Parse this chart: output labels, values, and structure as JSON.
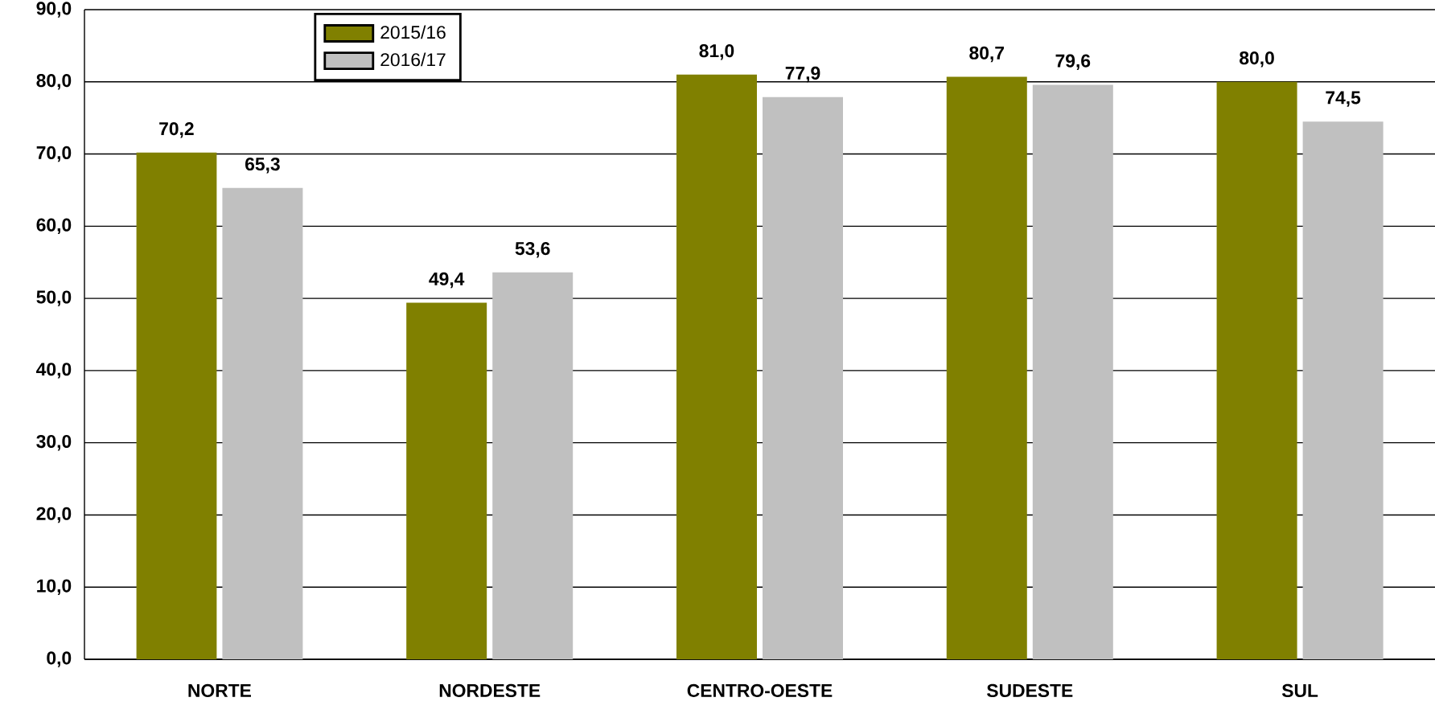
{
  "chart_data": {
    "type": "bar",
    "categories": [
      "NORTE",
      "NORDESTE",
      "CENTRO-OESTE",
      "SUDESTE",
      "SUL"
    ],
    "series": [
      {
        "name": "2015/16",
        "color": "#808000",
        "values": [
          70.2,
          49.4,
          81.0,
          80.7,
          80.0
        ],
        "value_labels": [
          "70,2",
          "49,4",
          "81,0",
          "80,7",
          "80,0"
        ]
      },
      {
        "name": "2016/17",
        "color": "#c0c0c0",
        "values": [
          65.3,
          53.6,
          77.9,
          79.6,
          74.5
        ],
        "value_labels": [
          "65,3",
          "53,6",
          "77,9",
          "79,6",
          "74,5"
        ]
      }
    ],
    "ylim": [
      0,
      90
    ],
    "yticks": [
      {
        "value": 0,
        "label": "0,0"
      },
      {
        "value": 10,
        "label": "10,0"
      },
      {
        "value": 20,
        "label": "20,0"
      },
      {
        "value": 30,
        "label": "30,0"
      },
      {
        "value": 40,
        "label": "40,0"
      },
      {
        "value": 50,
        "label": "50,0"
      },
      {
        "value": 60,
        "label": "60,0"
      },
      {
        "value": 70,
        "label": "70,0"
      },
      {
        "value": 80,
        "label": "80,0"
      },
      {
        "value": 90,
        "label": "90,0"
      }
    ],
    "grid": "y",
    "legend": "top left"
  }
}
